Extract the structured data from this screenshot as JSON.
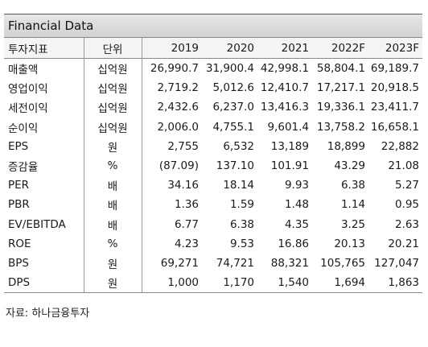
{
  "title": "Financial Data",
  "table": {
    "headers": [
      "투자지표",
      "단위",
      "2019",
      "2020",
      "2021",
      "2022F",
      "2023F"
    ],
    "rows": [
      [
        "매출액",
        "십억원",
        "26,990.7",
        "31,900.4",
        "42,998.1",
        "58,804.1",
        "69,189.7"
      ],
      [
        "영업이익",
        "십억원",
        "2,719.2",
        "5,012.6",
        "12,410.7",
        "17,217.1",
        "20,918.5"
      ],
      [
        "세전이익",
        "십억원",
        "2,432.6",
        "6,237.0",
        "13,416.3",
        "19,336.1",
        "23,411.7"
      ],
      [
        "순이익",
        "십억원",
        "2,006.0",
        "4,755.1",
        "9,601.4",
        "13,758.2",
        "16,658.1"
      ],
      [
        "EPS",
        "원",
        "2,755",
        "6,532",
        "13,189",
        "18,899",
        "22,882"
      ],
      [
        "증감율",
        "%",
        "(87.09)",
        "137.10",
        "101.91",
        "43.29",
        "21.08"
      ],
      [
        "PER",
        "배",
        "34.16",
        "18.14",
        "9.93",
        "6.38",
        "5.27"
      ],
      [
        "PBR",
        "배",
        "1.36",
        "1.59",
        "1.48",
        "1.14",
        "0.95"
      ],
      [
        "EV/EBITDA",
        "배",
        "6.77",
        "6.38",
        "4.35",
        "3.25",
        "2.63"
      ],
      [
        "ROE",
        "%",
        "4.23",
        "9.53",
        "16.86",
        "20.13",
        "20.21"
      ],
      [
        "BPS",
        "원",
        "69,271",
        "74,721",
        "88,321",
        "105,765",
        "127,047"
      ],
      [
        "DPS",
        "원",
        "1,000",
        "1,170",
        "1,540",
        "1,694",
        "1,863"
      ]
    ]
  },
  "source": "자료: 하나금융투자"
}
